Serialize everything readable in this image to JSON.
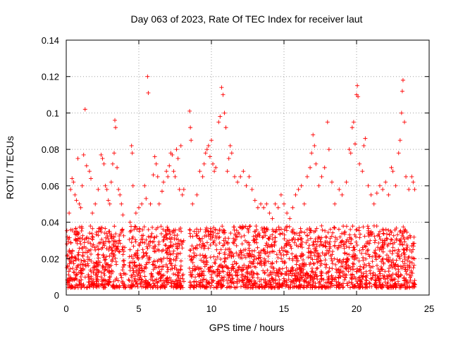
{
  "chart_data": {
    "type": "scatter",
    "title": "Day 063 of 2023, Rate Of TEC Index for receiver laut",
    "xlabel": "GPS time / hours",
    "ylabel": "ROTI / TECUs",
    "xlim": [
      0,
      25
    ],
    "ylim": [
      0,
      0.14
    ],
    "x_ticks": [
      0,
      5,
      10,
      15,
      20,
      25
    ],
    "x_tick_labels": [
      "0",
      "5",
      "10",
      "15",
      "20",
      "25"
    ],
    "y_ticks": [
      0,
      0.02,
      0.04,
      0.06,
      0.08,
      0.1,
      0.12,
      0.14
    ],
    "y_tick_labels": [
      "0",
      "0.02",
      "0.04",
      "0.06",
      "0.08",
      "0.1",
      "0.12",
      "0.14"
    ],
    "grid": true,
    "marker": "+",
    "color": "#ff0000",
    "series": [
      {
        "name": "ROTI",
        "points": [
          [
            0.05,
            0.028
          ],
          [
            0.2,
            0.045
          ],
          [
            0.3,
            0.058
          ],
          [
            0.4,
            0.064
          ],
          [
            0.5,
            0.062
          ],
          [
            0.6,
            0.055
          ],
          [
            0.7,
            0.052
          ],
          [
            0.8,
            0.075
          ],
          [
            0.9,
            0.05
          ],
          [
            1.0,
            0.048
          ],
          [
            1.1,
            0.06
          ],
          [
            1.2,
            0.077
          ],
          [
            1.3,
            0.102
          ],
          [
            1.4,
            0.071
          ],
          [
            1.6,
            0.068
          ],
          [
            1.7,
            0.064
          ],
          [
            1.8,
            0.045
          ],
          [
            2.0,
            0.05
          ],
          [
            2.2,
            0.058
          ],
          [
            2.4,
            0.077
          ],
          [
            2.5,
            0.075
          ],
          [
            2.6,
            0.072
          ],
          [
            2.7,
            0.06
          ],
          [
            2.8,
            0.058
          ],
          [
            2.9,
            0.052
          ],
          [
            3.0,
            0.05
          ],
          [
            3.1,
            0.062
          ],
          [
            3.2,
            0.072
          ],
          [
            3.3,
            0.078
          ],
          [
            3.35,
            0.096
          ],
          [
            3.4,
            0.092
          ],
          [
            3.5,
            0.07
          ],
          [
            3.6,
            0.058
          ],
          [
            3.7,
            0.055
          ],
          [
            3.8,
            0.05
          ],
          [
            3.9,
            0.044
          ],
          [
            4.4,
            0.04
          ],
          [
            4.5,
            0.082
          ],
          [
            4.55,
            0.078
          ],
          [
            4.6,
            0.06
          ],
          [
            4.8,
            0.045
          ],
          [
            5.0,
            0.048
          ],
          [
            5.2,
            0.05
          ],
          [
            5.4,
            0.06
          ],
          [
            5.5,
            0.053
          ],
          [
            5.6,
            0.12
          ],
          [
            5.65,
            0.111
          ],
          [
            5.8,
            0.05
          ],
          [
            6.0,
            0.066
          ],
          [
            6.1,
            0.076
          ],
          [
            6.2,
            0.072
          ],
          [
            6.3,
            0.065
          ],
          [
            6.4,
            0.05
          ],
          [
            6.6,
            0.057
          ],
          [
            6.7,
            0.062
          ],
          [
            6.9,
            0.068
          ],
          [
            7.0,
            0.065
          ],
          [
            7.1,
            0.071
          ],
          [
            7.2,
            0.078
          ],
          [
            7.3,
            0.077
          ],
          [
            7.4,
            0.068
          ],
          [
            7.5,
            0.065
          ],
          [
            7.6,
            0.08
          ],
          [
            7.7,
            0.075
          ],
          [
            7.8,
            0.058
          ],
          [
            7.9,
            0.082
          ],
          [
            8.0,
            0.055
          ],
          [
            8.1,
            0.058
          ],
          [
            8.5,
            0.101
          ],
          [
            8.55,
            0.092
          ],
          [
            8.6,
            0.085
          ],
          [
            8.7,
            0.05
          ],
          [
            9.0,
            0.055
          ],
          [
            9.2,
            0.068
          ],
          [
            9.4,
            0.065
          ],
          [
            9.5,
            0.072
          ],
          [
            9.6,
            0.078
          ],
          [
            9.7,
            0.08
          ],
          [
            9.8,
            0.082
          ],
          [
            9.9,
            0.076
          ],
          [
            10.0,
            0.085
          ],
          [
            10.1,
            0.072
          ],
          [
            10.2,
            0.068
          ],
          [
            10.3,
            0.07
          ],
          [
            10.5,
            0.095
          ],
          [
            10.6,
            0.098
          ],
          [
            10.7,
            0.114
          ],
          [
            10.8,
            0.11
          ],
          [
            10.9,
            0.1
          ],
          [
            11.0,
            0.092
          ],
          [
            11.1,
            0.068
          ],
          [
            11.2,
            0.075
          ],
          [
            11.3,
            0.082
          ],
          [
            11.4,
            0.078
          ],
          [
            11.6,
            0.065
          ],
          [
            11.8,
            0.062
          ],
          [
            12.0,
            0.065
          ],
          [
            12.2,
            0.068
          ],
          [
            12.4,
            0.06
          ],
          [
            12.6,
            0.065
          ],
          [
            12.8,
            0.058
          ],
          [
            13.0,
            0.052
          ],
          [
            13.2,
            0.048
          ],
          [
            13.4,
            0.05
          ],
          [
            13.6,
            0.048
          ],
          [
            13.8,
            0.05
          ],
          [
            14.0,
            0.045
          ],
          [
            14.2,
            0.042
          ],
          [
            14.4,
            0.05
          ],
          [
            14.6,
            0.048
          ],
          [
            14.8,
            0.055
          ],
          [
            15.0,
            0.05
          ],
          [
            15.2,
            0.045
          ],
          [
            15.4,
            0.042
          ],
          [
            15.6,
            0.048
          ],
          [
            15.8,
            0.055
          ],
          [
            16.0,
            0.058
          ],
          [
            16.2,
            0.06
          ],
          [
            16.4,
            0.05
          ],
          [
            16.6,
            0.065
          ],
          [
            16.8,
            0.07
          ],
          [
            16.9,
            0.078
          ],
          [
            17.0,
            0.088
          ],
          [
            17.1,
            0.082
          ],
          [
            17.2,
            0.072
          ],
          [
            17.4,
            0.06
          ],
          [
            17.6,
            0.065
          ],
          [
            17.8,
            0.07
          ],
          [
            18.0,
            0.095
          ],
          [
            18.1,
            0.08
          ],
          [
            18.3,
            0.062
          ],
          [
            18.5,
            0.05
          ],
          [
            18.8,
            0.058
          ],
          [
            19.0,
            0.055
          ],
          [
            19.3,
            0.062
          ],
          [
            19.5,
            0.08
          ],
          [
            19.6,
            0.078
          ],
          [
            19.7,
            0.092
          ],
          [
            19.8,
            0.095
          ],
          [
            19.9,
            0.083
          ],
          [
            20.0,
            0.11
          ],
          [
            20.05,
            0.115
          ],
          [
            20.1,
            0.109
          ],
          [
            20.2,
            0.072
          ],
          [
            20.4,
            0.068
          ],
          [
            20.5,
            0.082
          ],
          [
            20.6,
            0.086
          ],
          [
            20.8,
            0.06
          ],
          [
            21.0,
            0.055
          ],
          [
            21.2,
            0.05
          ],
          [
            21.4,
            0.056
          ],
          [
            21.6,
            0.06
          ],
          [
            21.8,
            0.058
          ],
          [
            22.0,
            0.062
          ],
          [
            22.2,
            0.055
          ],
          [
            22.4,
            0.07
          ],
          [
            22.5,
            0.068
          ],
          [
            22.7,
            0.06
          ],
          [
            22.9,
            0.078
          ],
          [
            23.0,
            0.085
          ],
          [
            23.1,
            0.1
          ],
          [
            23.15,
            0.112
          ],
          [
            23.2,
            0.118
          ],
          [
            23.3,
            0.095
          ],
          [
            23.4,
            0.065
          ],
          [
            23.6,
            0.058
          ],
          [
            23.8,
            0.065
          ],
          [
            23.9,
            0.062
          ],
          [
            24.0,
            0.058
          ]
        ]
      }
    ]
  }
}
